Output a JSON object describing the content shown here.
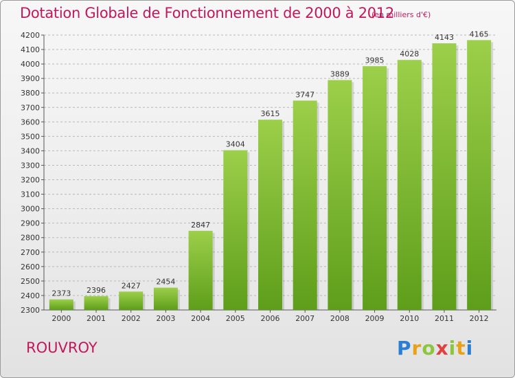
{
  "title": "Dotation Globale de Fonctionnement de 2000 à 2012",
  "subtitle": "(en milliers d'€)",
  "commune": "ROUVROY",
  "logo": {
    "letters": [
      "P",
      "r",
      "o",
      "x",
      "i",
      "t",
      "i"
    ],
    "colors": [
      "#2a7fd4",
      "#e8a21a",
      "#8cc63f",
      "#e04040",
      "#8cc63f",
      "#e8a21a",
      "#2a7fd4"
    ]
  },
  "colors": {
    "title": "#c2185b",
    "bar_top": "#9ccf4a",
    "bar_bottom": "#5e9e1a",
    "grid": "#b8b8b8"
  },
  "chart_data": {
    "type": "bar",
    "title": "Dotation Globale de Fonctionnement de 2000 à 2012",
    "subtitle": "(en milliers d'€)",
    "categories": [
      "2000",
      "2001",
      "2002",
      "2003",
      "2004",
      "2005",
      "2006",
      "2007",
      "2008",
      "2009",
      "2010",
      "2011",
      "2012"
    ],
    "values": [
      2373,
      2396,
      2427,
      2454,
      2847,
      3404,
      3615,
      3747,
      3889,
      3985,
      4028,
      4143,
      4165
    ],
    "ylim": [
      2300,
      4200
    ],
    "yticks": [
      2300,
      2400,
      2500,
      2600,
      2700,
      2800,
      2900,
      3000,
      3100,
      3200,
      3300,
      3400,
      3500,
      3600,
      3700,
      3800,
      3900,
      4000,
      4100,
      4200
    ],
    "grid": true,
    "data_labels": true
  }
}
